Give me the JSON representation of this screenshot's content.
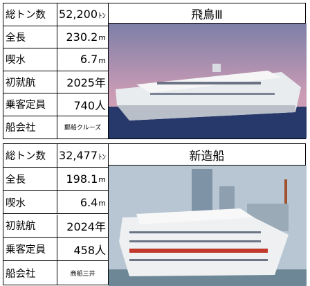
{
  "ships": [
    {
      "title": "飛鳥Ⅲ",
      "specs": [
        {
          "label": "総トン数",
          "value": "52,200",
          "unit": "ﾄﾝ"
        },
        {
          "label": "全長",
          "value": "230.2",
          "unit": "m"
        },
        {
          "label": "喫水",
          "value": "6.7",
          "unit": "m"
        },
        {
          "label": "初就航",
          "value": "2025年"
        },
        {
          "label": "乗客定員",
          "value": "740人"
        },
        {
          "label": "船会社",
          "value": "郵船クルーズ",
          "small": true
        }
      ]
    },
    {
      "title": "新造船",
      "specs": [
        {
          "label": "総トン数",
          "value": "32,477",
          "unit": "ﾄﾝ"
        },
        {
          "label": "全長",
          "value": "198.1",
          "unit": "m"
        },
        {
          "label": "喫水",
          "value": "6.4",
          "unit": "m"
        },
        {
          "label": "初就航",
          "value": "2024年"
        },
        {
          "label": "乗客定員",
          "value": "458人"
        },
        {
          "label": "船会社",
          "value": "商船三井",
          "small": true
        }
      ]
    }
  ]
}
